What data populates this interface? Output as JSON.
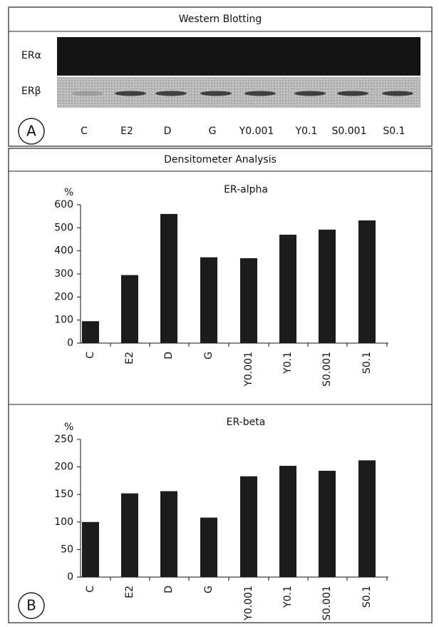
{
  "western_blot": {
    "title": "Western Blotting",
    "rows": [
      "ERα",
      "ERβ"
    ],
    "lanes": [
      "C",
      "E2",
      "D",
      "G",
      "Y0.001",
      "Y0.1",
      "S0.001",
      "S0.1"
    ],
    "panel": "A"
  },
  "densitometer": {
    "title": "Densitometer Analysis",
    "panel": "B"
  },
  "chart_data": [
    {
      "type": "bar",
      "title": "ER-alpha",
      "y_label": "%",
      "categories": [
        "C",
        "E2",
        "D",
        "G",
        "Y0.001",
        "Y0.1",
        "S0.001",
        "S0.1"
      ],
      "values": [
        95,
        295,
        560,
        372,
        368,
        470,
        492,
        532
      ],
      "color": "#1c1c1c",
      "ylim": [
        0,
        600
      ],
      "yticks": [
        0,
        100,
        200,
        300,
        400,
        500,
        600
      ]
    },
    {
      "type": "bar",
      "title": "ER-beta",
      "y_label": "%",
      "categories": [
        "C",
        "E2",
        "D",
        "G",
        "Y0.001",
        "Y0.1",
        "S0.001",
        "S0.1"
      ],
      "values": [
        100,
        152,
        156,
        108,
        183,
        202,
        193,
        212
      ],
      "color": "#1c1c1c",
      "ylim": [
        0,
        250
      ],
      "yticks": [
        0,
        50,
        100,
        150,
        200,
        250
      ]
    }
  ]
}
